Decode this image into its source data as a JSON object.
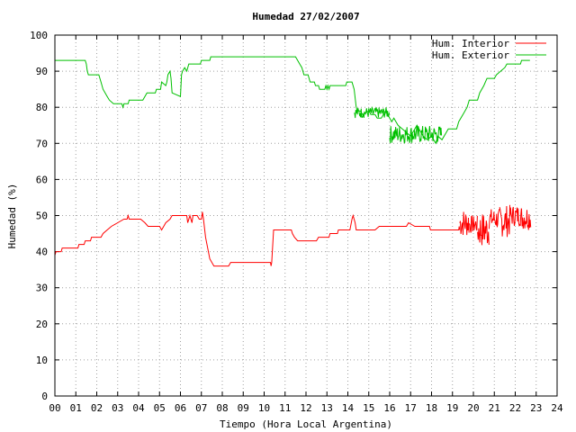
{
  "chart_data": {
    "type": "line",
    "title": "Humedad 27/02/2007",
    "xlabel": "Tiempo (Hora Local Argentina)",
    "ylabel": "Humedad (%)",
    "xlim": [
      0,
      24
    ],
    "ylim": [
      0,
      100
    ],
    "x_ticks": [
      "00",
      "01",
      "02",
      "03",
      "04",
      "05",
      "06",
      "07",
      "08",
      "09",
      "10",
      "11",
      "12",
      "13",
      "14",
      "15",
      "16",
      "17",
      "18",
      "19",
      "20",
      "21",
      "22",
      "23",
      "24"
    ],
    "y_ticks": [
      "0",
      "10",
      "20",
      "30",
      "40",
      "50",
      "60",
      "70",
      "80",
      "90",
      "100"
    ],
    "grid": true,
    "legend_position": "top-right",
    "series": [
      {
        "name": "Hum. Interior",
        "color": "#ff0000",
        "points": [
          [
            0.0,
            39
          ],
          [
            0.05,
            40
          ],
          [
            0.3,
            40
          ],
          [
            0.35,
            41
          ],
          [
            1.1,
            41
          ],
          [
            1.15,
            42
          ],
          [
            1.4,
            42
          ],
          [
            1.45,
            43
          ],
          [
            1.7,
            43
          ],
          [
            1.75,
            44
          ],
          [
            2.2,
            44
          ],
          [
            2.3,
            45
          ],
          [
            2.5,
            46
          ],
          [
            2.7,
            47
          ],
          [
            3.0,
            48
          ],
          [
            3.3,
            49
          ],
          [
            3.45,
            49
          ],
          [
            3.5,
            50
          ],
          [
            3.55,
            49
          ],
          [
            4.1,
            49
          ],
          [
            4.3,
            48
          ],
          [
            4.45,
            47
          ],
          [
            5.0,
            47
          ],
          [
            5.1,
            46
          ],
          [
            5.2,
            47
          ],
          [
            5.3,
            48
          ],
          [
            5.5,
            49
          ],
          [
            5.6,
            50
          ],
          [
            6.3,
            50
          ],
          [
            6.35,
            48
          ],
          [
            6.45,
            50
          ],
          [
            6.5,
            49
          ],
          [
            6.55,
            48
          ],
          [
            6.6,
            50
          ],
          [
            6.8,
            50
          ],
          [
            6.9,
            49
          ],
          [
            7.0,
            49
          ],
          [
            7.05,
            51
          ],
          [
            7.1,
            49
          ],
          [
            7.2,
            44
          ],
          [
            7.4,
            38
          ],
          [
            7.6,
            36
          ],
          [
            8.3,
            36
          ],
          [
            8.4,
            37
          ],
          [
            10.3,
            37
          ],
          [
            10.33,
            36
          ],
          [
            10.36,
            37
          ],
          [
            10.45,
            46
          ],
          [
            11.3,
            46
          ],
          [
            11.35,
            45
          ],
          [
            11.45,
            44
          ],
          [
            11.6,
            43
          ],
          [
            12.5,
            43
          ],
          [
            12.6,
            44
          ],
          [
            13.1,
            44
          ],
          [
            13.15,
            45
          ],
          [
            13.5,
            45
          ],
          [
            13.55,
            46
          ],
          [
            14.1,
            46
          ],
          [
            14.2,
            49
          ],
          [
            14.25,
            50
          ],
          [
            14.35,
            48
          ],
          [
            14.4,
            46
          ],
          [
            15.2,
            46
          ],
          [
            15.3,
            46
          ],
          [
            15.5,
            47
          ],
          [
            16.8,
            47
          ],
          [
            16.9,
            48
          ],
          [
            17.2,
            47
          ],
          [
            17.9,
            47
          ],
          [
            17.95,
            46
          ],
          [
            19.3,
            46
          ],
          [
            19.32,
            47
          ],
          [
            19.34,
            46
          ]
        ],
        "noise_segments": [
          {
            "from": 19.35,
            "to": 19.8,
            "low": 44,
            "high": 52
          },
          {
            "from": 19.8,
            "to": 20.2,
            "low": 45,
            "high": 50
          },
          {
            "from": 20.2,
            "to": 20.75,
            "low": 41,
            "high": 51
          },
          {
            "from": 20.75,
            "to": 21.25,
            "low": 46,
            "high": 52
          },
          {
            "from": 21.25,
            "to": 21.75,
            "low": 44,
            "high": 53
          },
          {
            "from": 21.75,
            "to": 22.3,
            "low": 47,
            "high": 53
          },
          {
            "from": 22.3,
            "to": 22.75,
            "low": 46,
            "high": 53
          }
        ]
      },
      {
        "name": "Hum. Exterior",
        "color": "#00c000",
        "points": [
          [
            0.0,
            93
          ],
          [
            1.45,
            93
          ],
          [
            1.5,
            92
          ],
          [
            1.55,
            90
          ],
          [
            1.6,
            89
          ],
          [
            2.1,
            89
          ],
          [
            2.2,
            87
          ],
          [
            2.3,
            85
          ],
          [
            2.5,
            83
          ],
          [
            2.6,
            82
          ],
          [
            2.8,
            81
          ],
          [
            3.2,
            81
          ],
          [
            3.25,
            80
          ],
          [
            3.3,
            81
          ],
          [
            3.5,
            81
          ],
          [
            3.55,
            82
          ],
          [
            4.2,
            82
          ],
          [
            4.3,
            83
          ],
          [
            4.4,
            84
          ],
          [
            4.8,
            84
          ],
          [
            4.85,
            85
          ],
          [
            5.05,
            85
          ],
          [
            5.1,
            87
          ],
          [
            5.3,
            86
          ],
          [
            5.35,
            87
          ],
          [
            5.4,
            89
          ],
          [
            5.5,
            90
          ],
          [
            5.55,
            88
          ],
          [
            5.6,
            84
          ],
          [
            6.0,
            83
          ],
          [
            6.05,
            89
          ],
          [
            6.1,
            90
          ],
          [
            6.2,
            91
          ],
          [
            6.3,
            90
          ],
          [
            6.4,
            92
          ],
          [
            6.95,
            92
          ],
          [
            7.0,
            93
          ],
          [
            7.4,
            93
          ],
          [
            7.45,
            94
          ],
          [
            11.5,
            94
          ],
          [
            11.6,
            93
          ],
          [
            11.7,
            92
          ],
          [
            11.8,
            91
          ],
          [
            11.9,
            89
          ],
          [
            12.1,
            89
          ],
          [
            12.2,
            87
          ],
          [
            12.4,
            87
          ],
          [
            12.45,
            86
          ],
          [
            12.6,
            86
          ],
          [
            12.65,
            85
          ],
          [
            12.9,
            85
          ],
          [
            12.95,
            86
          ],
          [
            13.0,
            85
          ],
          [
            13.05,
            86
          ],
          [
            13.1,
            85
          ],
          [
            13.15,
            86
          ],
          [
            13.9,
            86
          ],
          [
            13.95,
            87
          ],
          [
            14.2,
            87
          ],
          [
            14.3,
            85
          ],
          [
            14.4,
            80
          ],
          [
            14.45,
            79
          ],
          [
            14.6,
            79
          ],
          [
            14.7,
            78
          ],
          [
            15.0,
            79
          ],
          [
            15.1,
            78
          ],
          [
            15.3,
            78
          ],
          [
            15.4,
            77
          ],
          [
            15.6,
            77
          ],
          [
            15.7,
            78
          ],
          [
            15.8,
            79
          ],
          [
            15.9,
            78
          ],
          [
            16.1,
            76
          ],
          [
            16.2,
            77
          ],
          [
            16.4,
            75
          ],
          [
            16.6,
            74
          ],
          [
            16.8,
            73
          ],
          [
            17.0,
            72
          ],
          [
            17.2,
            74
          ],
          [
            17.3,
            75
          ],
          [
            17.5,
            73
          ],
          [
            17.6,
            72
          ],
          [
            17.8,
            71
          ],
          [
            18.0,
            72
          ],
          [
            18.1,
            71
          ],
          [
            18.2,
            70
          ],
          [
            18.3,
            72
          ],
          [
            18.5,
            71
          ],
          [
            18.7,
            73
          ],
          [
            18.8,
            74
          ],
          [
            19.2,
            74
          ],
          [
            19.3,
            76
          ],
          [
            19.5,
            78
          ],
          [
            19.7,
            80
          ],
          [
            19.8,
            82
          ],
          [
            20.2,
            82
          ],
          [
            20.3,
            84
          ],
          [
            20.5,
            86
          ],
          [
            20.65,
            88
          ],
          [
            21.0,
            88
          ],
          [
            21.1,
            89
          ],
          [
            21.3,
            90
          ],
          [
            21.5,
            91
          ],
          [
            21.6,
            92
          ],
          [
            22.25,
            92
          ],
          [
            22.3,
            93
          ],
          [
            22.7,
            93
          ]
        ],
        "noise_segments": [
          {
            "from": 14.3,
            "to": 16.0,
            "low": 77,
            "high": 80
          },
          {
            "from": 16.0,
            "to": 18.5,
            "low": 70,
            "high": 75
          }
        ]
      }
    ]
  }
}
